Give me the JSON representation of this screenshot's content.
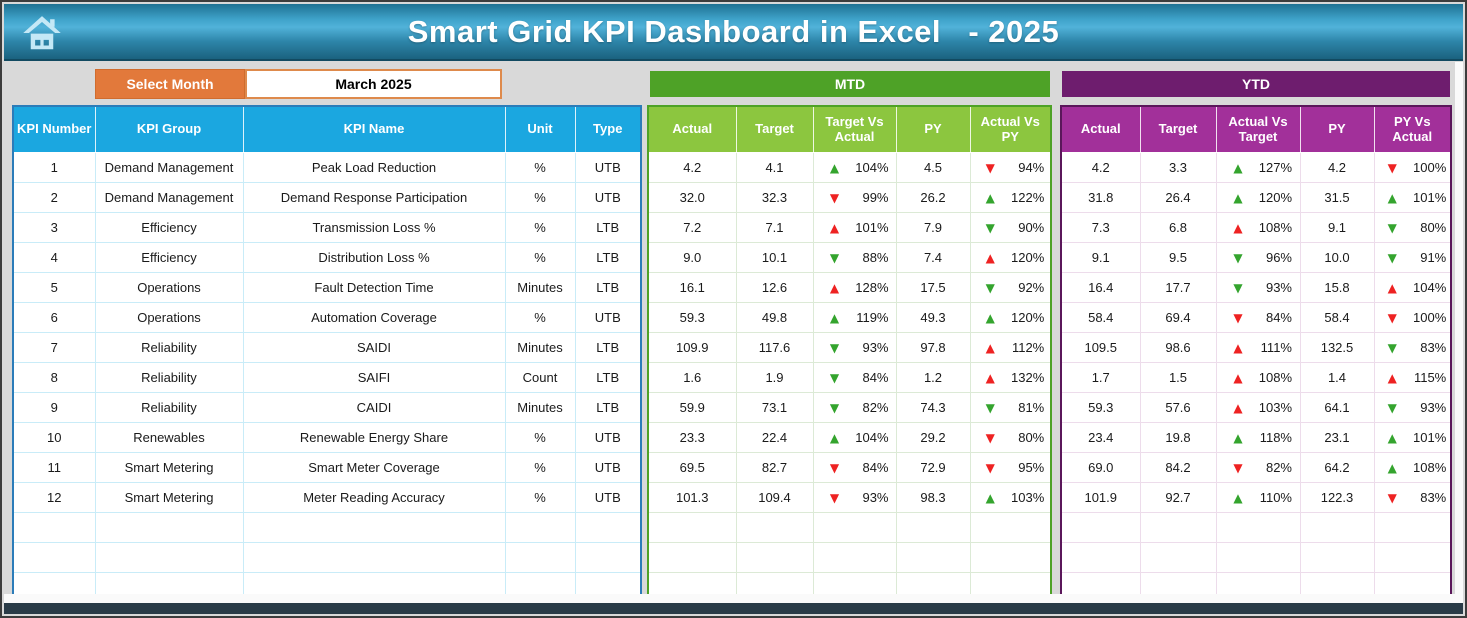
{
  "header": {
    "title": "Smart Grid KPI Dashboard in Excel   - 2025"
  },
  "controls": {
    "select_month_label": "Select Month",
    "selected_month": "March 2025"
  },
  "sections": {
    "mtd_label": "MTD",
    "ytd_label": "YTD"
  },
  "kpi_table": {
    "headers": [
      "KPI Number",
      "KPI Group",
      "KPI Name",
      "Unit",
      "Type"
    ]
  },
  "mtd_table": {
    "headers": [
      "Actual",
      "Target",
      "Target Vs Actual",
      "PY",
      "Actual Vs PY"
    ]
  },
  "ytd_table": {
    "headers": [
      "Actual",
      "Target",
      "Actual Vs Target",
      "PY",
      "PY Vs Actual"
    ]
  },
  "empty_row_count": 3,
  "colors": {
    "header_gradient_top": "#3fa3ca",
    "header_gradient_bottom": "#1b627f",
    "kpi_header_bg": "#1ba7e0",
    "kpi_border": "#2b7cb9",
    "mtd_banner_bg": "#4ea227",
    "mtd_header_bg": "#8cc63f",
    "ytd_banner_bg": "#6e1d6e",
    "ytd_header_bg": "#a2309a",
    "select_month_bg": "#e2793b",
    "arrow_green": "#34a42e",
    "arrow_red": "#ee2222"
  },
  "rows": [
    {
      "num": "1",
      "group": "Demand Management",
      "name": "Peak Load Reduction",
      "unit": "%",
      "type": "UTB",
      "mtd": {
        "actual": "4.2",
        "target": "4.1",
        "tva": {
          "dir": "up",
          "color": "green",
          "pct": "104%"
        },
        "py": "4.5",
        "avp": {
          "dir": "down",
          "color": "red",
          "pct": "94%"
        }
      },
      "ytd": {
        "actual": "4.2",
        "target": "3.3",
        "avt": {
          "dir": "up",
          "color": "green",
          "pct": "127%"
        },
        "py": "4.2",
        "pva": {
          "dir": "down",
          "color": "red",
          "pct": "100%"
        }
      }
    },
    {
      "num": "2",
      "group": "Demand Management",
      "name": "Demand Response Participation",
      "unit": "%",
      "type": "UTB",
      "mtd": {
        "actual": "32.0",
        "target": "32.3",
        "tva": {
          "dir": "down",
          "color": "red",
          "pct": "99%"
        },
        "py": "26.2",
        "avp": {
          "dir": "up",
          "color": "green",
          "pct": "122%"
        }
      },
      "ytd": {
        "actual": "31.8",
        "target": "26.4",
        "avt": {
          "dir": "up",
          "color": "green",
          "pct": "120%"
        },
        "py": "31.5",
        "pva": {
          "dir": "up",
          "color": "green",
          "pct": "101%"
        }
      }
    },
    {
      "num": "3",
      "group": "Efficiency",
      "name": "Transmission Loss %",
      "unit": "%",
      "type": "LTB",
      "mtd": {
        "actual": "7.2",
        "target": "7.1",
        "tva": {
          "dir": "up",
          "color": "red",
          "pct": "101%"
        },
        "py": "7.9",
        "avp": {
          "dir": "down",
          "color": "green",
          "pct": "90%"
        }
      },
      "ytd": {
        "actual": "7.3",
        "target": "6.8",
        "avt": {
          "dir": "up",
          "color": "red",
          "pct": "108%"
        },
        "py": "9.1",
        "pva": {
          "dir": "down",
          "color": "green",
          "pct": "80%"
        }
      }
    },
    {
      "num": "4",
      "group": "Efficiency",
      "name": "Distribution Loss %",
      "unit": "%",
      "type": "LTB",
      "mtd": {
        "actual": "9.0",
        "target": "10.1",
        "tva": {
          "dir": "down",
          "color": "green",
          "pct": "88%"
        },
        "py": "7.4",
        "avp": {
          "dir": "up",
          "color": "red",
          "pct": "120%"
        }
      },
      "ytd": {
        "actual": "9.1",
        "target": "9.5",
        "avt": {
          "dir": "down",
          "color": "green",
          "pct": "96%"
        },
        "py": "10.0",
        "pva": {
          "dir": "down",
          "color": "green",
          "pct": "91%"
        }
      }
    },
    {
      "num": "5",
      "group": "Operations",
      "name": "Fault Detection Time",
      "unit": "Minutes",
      "type": "LTB",
      "mtd": {
        "actual": "16.1",
        "target": "12.6",
        "tva": {
          "dir": "up",
          "color": "red",
          "pct": "128%"
        },
        "py": "17.5",
        "avp": {
          "dir": "down",
          "color": "green",
          "pct": "92%"
        }
      },
      "ytd": {
        "actual": "16.4",
        "target": "17.7",
        "avt": {
          "dir": "down",
          "color": "green",
          "pct": "93%"
        },
        "py": "15.8",
        "pva": {
          "dir": "up",
          "color": "red",
          "pct": "104%"
        }
      }
    },
    {
      "num": "6",
      "group": "Operations",
      "name": "Automation Coverage",
      "unit": "%",
      "type": "UTB",
      "mtd": {
        "actual": "59.3",
        "target": "49.8",
        "tva": {
          "dir": "up",
          "color": "green",
          "pct": "119%"
        },
        "py": "49.3",
        "avp": {
          "dir": "up",
          "color": "green",
          "pct": "120%"
        }
      },
      "ytd": {
        "actual": "58.4",
        "target": "69.4",
        "avt": {
          "dir": "down",
          "color": "red",
          "pct": "84%"
        },
        "py": "58.4",
        "pva": {
          "dir": "down",
          "color": "red",
          "pct": "100%"
        }
      }
    },
    {
      "num": "7",
      "group": "Reliability",
      "name": "SAIDI",
      "unit": "Minutes",
      "type": "LTB",
      "mtd": {
        "actual": "109.9",
        "target": "117.6",
        "tva": {
          "dir": "down",
          "color": "green",
          "pct": "93%"
        },
        "py": "97.8",
        "avp": {
          "dir": "up",
          "color": "red",
          "pct": "112%"
        }
      },
      "ytd": {
        "actual": "109.5",
        "target": "98.6",
        "avt": {
          "dir": "up",
          "color": "red",
          "pct": "111%"
        },
        "py": "132.5",
        "pva": {
          "dir": "down",
          "color": "green",
          "pct": "83%"
        }
      }
    },
    {
      "num": "8",
      "group": "Reliability",
      "name": "SAIFI",
      "unit": "Count",
      "type": "LTB",
      "mtd": {
        "actual": "1.6",
        "target": "1.9",
        "tva": {
          "dir": "down",
          "color": "green",
          "pct": "84%"
        },
        "py": "1.2",
        "avp": {
          "dir": "up",
          "color": "red",
          "pct": "132%"
        }
      },
      "ytd": {
        "actual": "1.7",
        "target": "1.5",
        "avt": {
          "dir": "up",
          "color": "red",
          "pct": "108%"
        },
        "py": "1.4",
        "pva": {
          "dir": "up",
          "color": "red",
          "pct": "115%"
        }
      }
    },
    {
      "num": "9",
      "group": "Reliability",
      "name": "CAIDI",
      "unit": "Minutes",
      "type": "LTB",
      "mtd": {
        "actual": "59.9",
        "target": "73.1",
        "tva": {
          "dir": "down",
          "color": "green",
          "pct": "82%"
        },
        "py": "74.3",
        "avp": {
          "dir": "down",
          "color": "green",
          "pct": "81%"
        }
      },
      "ytd": {
        "actual": "59.3",
        "target": "57.6",
        "avt": {
          "dir": "up",
          "color": "red",
          "pct": "103%"
        },
        "py": "64.1",
        "pva": {
          "dir": "down",
          "color": "green",
          "pct": "93%"
        }
      }
    },
    {
      "num": "10",
      "group": "Renewables",
      "name": "Renewable Energy Share",
      "unit": "%",
      "type": "UTB",
      "mtd": {
        "actual": "23.3",
        "target": "22.4",
        "tva": {
          "dir": "up",
          "color": "green",
          "pct": "104%"
        },
        "py": "29.2",
        "avp": {
          "dir": "down",
          "color": "red",
          "pct": "80%"
        }
      },
      "ytd": {
        "actual": "23.4",
        "target": "19.8",
        "avt": {
          "dir": "up",
          "color": "green",
          "pct": "118%"
        },
        "py": "23.1",
        "pva": {
          "dir": "up",
          "color": "green",
          "pct": "101%"
        }
      }
    },
    {
      "num": "11",
      "group": "Smart Metering",
      "name": "Smart Meter Coverage",
      "unit": "%",
      "type": "UTB",
      "mtd": {
        "actual": "69.5",
        "target": "82.7",
        "tva": {
          "dir": "down",
          "color": "red",
          "pct": "84%"
        },
        "py": "72.9",
        "avp": {
          "dir": "down",
          "color": "red",
          "pct": "95%"
        }
      },
      "ytd": {
        "actual": "69.0",
        "target": "84.2",
        "avt": {
          "dir": "down",
          "color": "red",
          "pct": "82%"
        },
        "py": "64.2",
        "pva": {
          "dir": "up",
          "color": "green",
          "pct": "108%"
        }
      }
    },
    {
      "num": "12",
      "group": "Smart Metering",
      "name": "Meter Reading Accuracy",
      "unit": "%",
      "type": "UTB",
      "mtd": {
        "actual": "101.3",
        "target": "109.4",
        "tva": {
          "dir": "down",
          "color": "red",
          "pct": "93%"
        },
        "py": "98.3",
        "avp": {
          "dir": "up",
          "color": "green",
          "pct": "103%"
        }
      },
      "ytd": {
        "actual": "101.9",
        "target": "92.7",
        "avt": {
          "dir": "up",
          "color": "green",
          "pct": "110%"
        },
        "py": "122.3",
        "pva": {
          "dir": "down",
          "color": "red",
          "pct": "83%"
        }
      }
    }
  ]
}
